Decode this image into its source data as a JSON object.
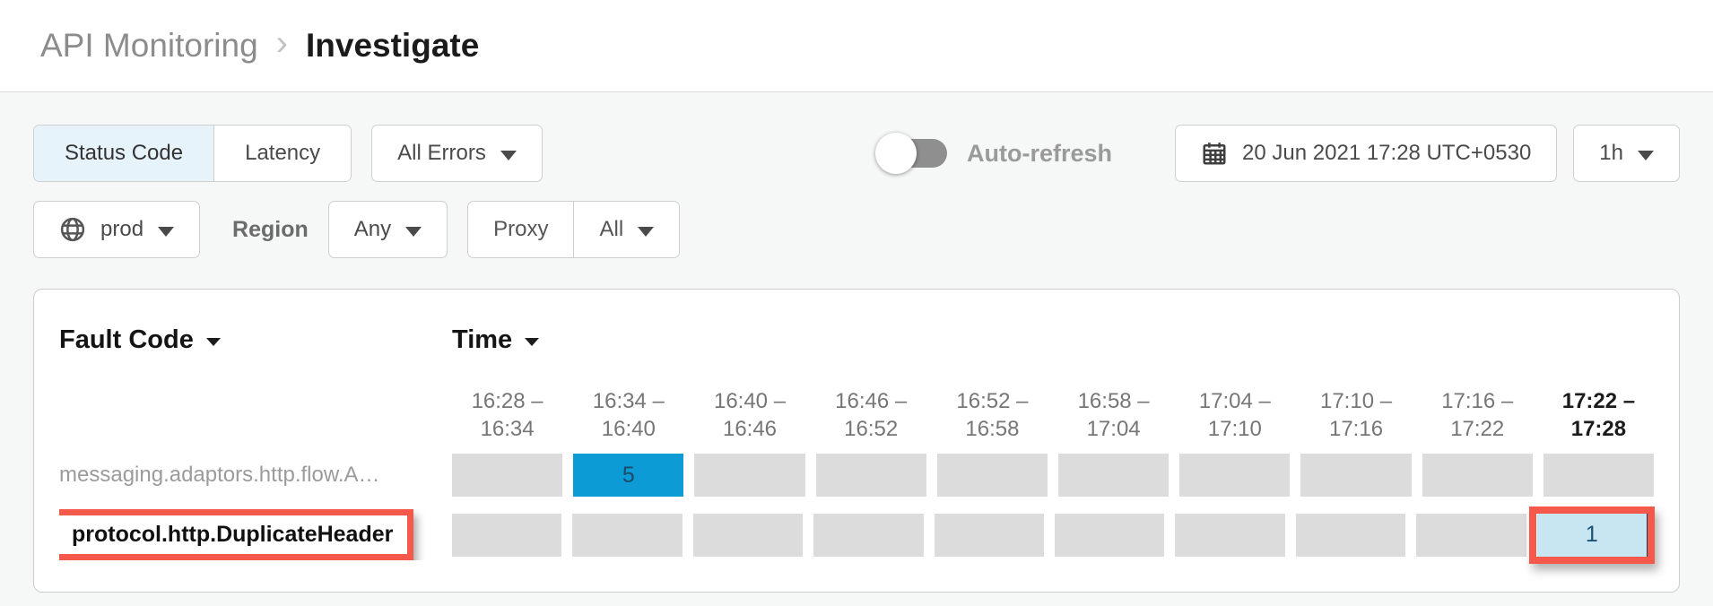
{
  "breadcrumb": {
    "section": "API Monitoring",
    "separator": "›",
    "page": "Investigate"
  },
  "filters": {
    "metric_tabs": [
      {
        "label": "Status Code",
        "selected": true
      },
      {
        "label": "Latency",
        "selected": false
      }
    ],
    "error_filter": {
      "label": "All Errors"
    },
    "auto_refresh": {
      "label": "Auto-refresh",
      "enabled": false
    },
    "datetime": {
      "value": "20 Jun 2021 17:28 UTC+0530"
    },
    "range": {
      "value": "1h"
    },
    "environment": {
      "value": "prod"
    },
    "region": {
      "label": "Region",
      "value": "Any"
    },
    "proxy": {
      "label": "Proxy",
      "value": "All"
    }
  },
  "heatmap": {
    "row_dimension": "Fault Code",
    "col_dimension": "Time",
    "columns": [
      {
        "line1": "16:28 –",
        "line2": "16:34",
        "current": false
      },
      {
        "line1": "16:34 –",
        "line2": "16:40",
        "current": false
      },
      {
        "line1": "16:40 –",
        "line2": "16:46",
        "current": false
      },
      {
        "line1": "16:46 –",
        "line2": "16:52",
        "current": false
      },
      {
        "line1": "16:52 –",
        "line2": "16:58",
        "current": false
      },
      {
        "line1": "16:58 –",
        "line2": "17:04",
        "current": false
      },
      {
        "line1": "17:04 –",
        "line2": "17:10",
        "current": false
      },
      {
        "line1": "17:10 –",
        "line2": "17:16",
        "current": false
      },
      {
        "line1": "17:16 –",
        "line2": "17:22",
        "current": false
      },
      {
        "line1": "17:22 –",
        "line2": "17:28",
        "current": true
      }
    ],
    "rows": [
      {
        "label": "messaging.adaptors.http.flow.A…",
        "annotated": false,
        "cells": [
          {},
          {
            "value": "5",
            "variant": "active"
          },
          {},
          {},
          {},
          {},
          {},
          {},
          {},
          {}
        ]
      },
      {
        "label": "protocol.http.DuplicateHeader",
        "annotated": true,
        "cells": [
          {},
          {},
          {},
          {},
          {},
          {},
          {},
          {},
          {},
          {
            "value": "1",
            "variant": "selected",
            "annotated": true
          }
        ]
      }
    ]
  },
  "colors": {
    "accent_blue": "#0d9bd6",
    "selected_cell_bg": "#c8e5f2",
    "selection_bar": "#0d3c57",
    "empty_cell": "#dcdcdc",
    "annotation_red": "#f4594b",
    "selected_tab_bg": "#e7f3fa"
  }
}
